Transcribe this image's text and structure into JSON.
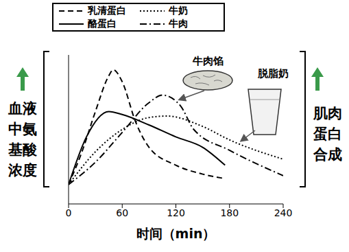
{
  "chart_data": {
    "type": "line",
    "x_label": "时间（min）",
    "y_label": "血液中氨基酸浓度",
    "y2_label": "肌肉蛋白合成",
    "xlim": [
      0,
      240
    ],
    "xticks": [
      0,
      60,
      120,
      180,
      240
    ],
    "ylim": [
      0,
      100
    ],
    "yticks": [],
    "tick_labels": "x",
    "legend": "top-left",
    "grid": false,
    "annotations": [
      "牛肉馅",
      "脱脂奶"
    ],
    "series": [
      {
        "name": "乳清蛋白",
        "color": "#000000",
        "line_style": "dashed",
        "x": [
          0,
          15,
          30,
          45,
          50,
          60,
          75,
          90,
          120,
          150,
          175
        ],
        "values": [
          13,
          35,
          62,
          86,
          90,
          82,
          55,
          38,
          26,
          20,
          17
        ]
      },
      {
        "name": "酪蛋白",
        "color": "#000000",
        "line_style": "solid",
        "x": [
          0,
          20,
          45,
          60,
          90,
          120,
          150,
          175
        ],
        "values": [
          13,
          45,
          62,
          60,
          53,
          45,
          38,
          26
        ]
      },
      {
        "name": "牛奶",
        "color": "#000000",
        "line_style": "dotted",
        "x": [
          0,
          30,
          60,
          90,
          110,
          150,
          180,
          240
        ],
        "values": [
          13,
          35,
          50,
          58,
          59,
          52,
          43,
          30
        ]
      },
      {
        "name": "牛肉",
        "color": "#000000",
        "line_style": "dashdot",
        "x": [
          0,
          30,
          60,
          90,
          105,
          125,
          140,
          180,
          240
        ],
        "values": [
          13,
          28,
          48,
          68,
          73,
          66,
          50,
          36,
          19
        ]
      }
    ]
  }
}
